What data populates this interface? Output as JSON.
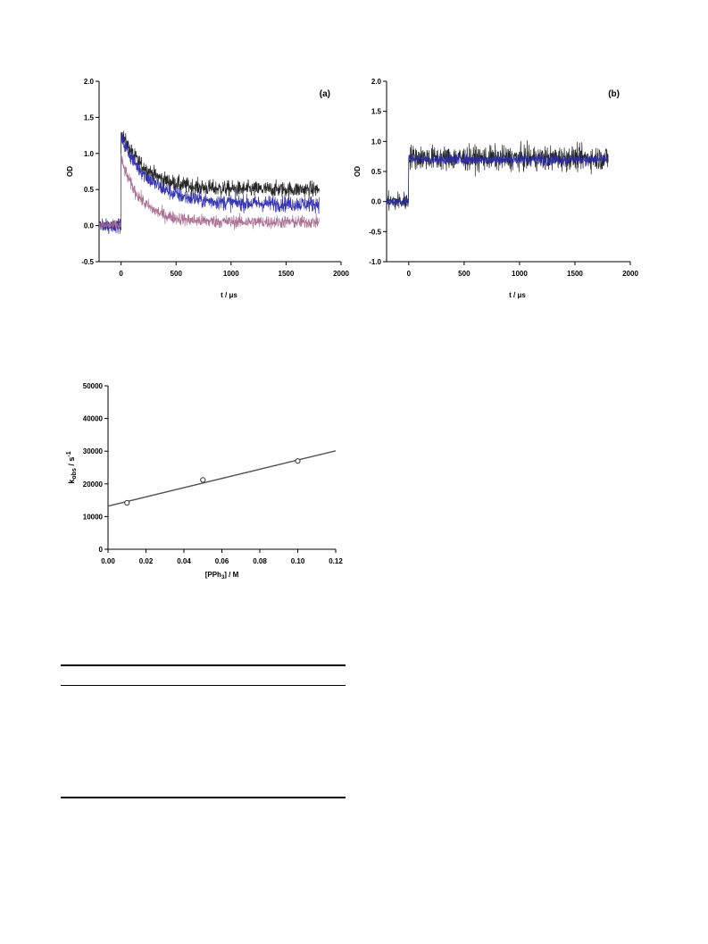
{
  "chart_data": [
    {
      "type": "line",
      "panel_label": "(a)",
      "xlabel": "t / μs",
      "ylabel": "OD",
      "xlim": [
        -200,
        2000
      ],
      "ylim": [
        -0.5,
        2.0
      ],
      "x_ticks": [
        "0",
        "500",
        "1000",
        "1500",
        "2000"
      ],
      "y_ticks": [
        "-0.5",
        "0.0",
        "0.5",
        "1.0",
        "1.5",
        "2.0"
      ],
      "grid": false,
      "series": [
        {
          "color": "#1a1a1a",
          "baseline": 0.0,
          "peak": 1.3,
          "plateau": 0.5,
          "tau_us": 220,
          "noise": 0.11
        },
        {
          "color": "#2b2bb0",
          "baseline": 0.0,
          "peak": 1.22,
          "plateau": 0.3,
          "tau_us": 260,
          "noise": 0.11
        },
        {
          "color": "#a86b8f",
          "baseline": 0.0,
          "peak": 0.92,
          "plateau": 0.05,
          "tau_us": 180,
          "noise": 0.09
        }
      ]
    },
    {
      "type": "line",
      "panel_label": "(b)",
      "xlabel": "t / μs",
      "ylabel": "OD",
      "xlim": [
        -200,
        2000
      ],
      "ylim": [
        -1.0,
        2.0
      ],
      "x_ticks": [
        "0",
        "500",
        "1000",
        "1500",
        "2000"
      ],
      "y_ticks": [
        "-1.0",
        "-0.5",
        "0.0",
        "0.5",
        "1.0",
        "1.5",
        "2.0"
      ],
      "grid": false,
      "series": [
        {
          "color": "#1a1a1a",
          "baseline": 0.0,
          "peak": 0.75,
          "plateau": 0.72,
          "tau_us": 100,
          "noise": 0.2
        },
        {
          "color": "#2b2bb0",
          "baseline": 0.0,
          "peak": 0.72,
          "plateau": 0.7,
          "tau_us": 100,
          "noise": 0.09
        }
      ]
    },
    {
      "type": "scatter",
      "xlabel": "[PPh3] / M",
      "ylabel": "kobs / s-1",
      "xlim": [
        0.0,
        0.12
      ],
      "ylim": [
        0,
        50000
      ],
      "x_ticks": [
        "0.00",
        "0.02",
        "0.04",
        "0.06",
        "0.08",
        "0.10",
        "0.12"
      ],
      "y_ticks": [
        "0",
        "10000",
        "20000",
        "30000",
        "40000",
        "50000"
      ],
      "grid": false,
      "points": [
        {
          "x": 0.01,
          "y": 14200
        },
        {
          "x": 0.05,
          "y": 21200
        },
        {
          "x": 0.1,
          "y": 27000
        }
      ],
      "fit_line": {
        "intercept": 13200,
        "slope": 141000
      }
    }
  ]
}
